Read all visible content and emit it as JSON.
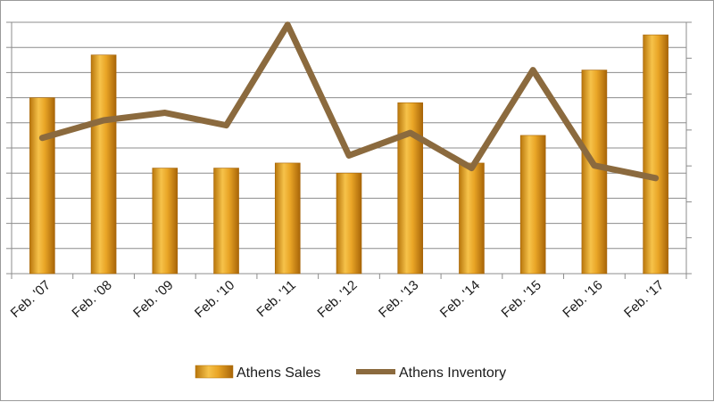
{
  "chart_data": {
    "type": "bar",
    "title": "",
    "xlabel": "",
    "ylabel": "",
    "categories": [
      "Feb. '07",
      "Feb. '08",
      "Feb. '09",
      "Feb. '10",
      "Feb. '11",
      "Feb. '12",
      "Feb. '13",
      "Feb. '14",
      "Feb. '15",
      "Feb. '16",
      "Feb. '17"
    ],
    "series": [
      {
        "name": "Athens Sales",
        "type": "bar",
        "axis": "left",
        "color": "#e6a020",
        "values": [
          0.7,
          0.87,
          0.42,
          0.42,
          0.44,
          0.4,
          0.68,
          0.44,
          0.55,
          0.81,
          0.95
        ]
      },
      {
        "name": "Athens Inventory",
        "type": "line",
        "axis": "right",
        "color": "#8b6a3e",
        "values": [
          0.54,
          0.61,
          0.64,
          0.59,
          0.99,
          0.47,
          0.56,
          0.42,
          0.81,
          0.43,
          0.38
        ]
      }
    ],
    "ylim": [
      0,
      1
    ],
    "y2lim": [
      0,
      1
    ],
    "left_tick_count": 11,
    "right_tick_count": 8,
    "grid": true,
    "legend_position": "bottom",
    "tick_labels_note": "axis tick numbers are cropped at the image edges and not legible"
  },
  "legend": {
    "sales_label": "Athens Sales",
    "inventory_label": "Athens Inventory"
  }
}
